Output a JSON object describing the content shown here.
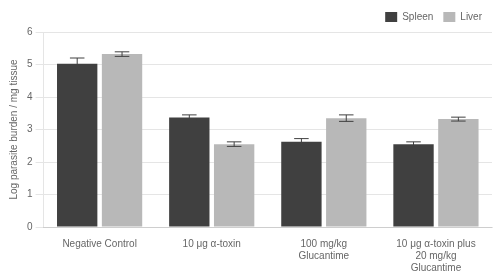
{
  "chart_data": {
    "type": "bar",
    "categories": [
      "Negative Control",
      "10 μg α-toxin",
      "100 mg/kg\nGlucantime",
      "10 μg α-toxin plus\n20 mg/kg\nGlucantime"
    ],
    "series": [
      {
        "name": "Spleen",
        "color": "#404040",
        "values": [
          5.02,
          3.37,
          2.62,
          2.55
        ],
        "errors": [
          0.18,
          0.08,
          0.1,
          0.07
        ]
      },
      {
        "name": "Liver",
        "color": "#b8b8b8",
        "values": [
          5.32,
          2.55,
          3.35,
          3.32
        ],
        "errors": [
          0.07,
          0.07,
          0.1,
          0.06
        ]
      }
    ],
    "ylabel": "Log parasite burden / mg tissue",
    "ylim": [
      0,
      6
    ],
    "yticks": [
      0,
      1,
      2,
      3,
      4,
      5,
      6
    ],
    "grid": true,
    "legend": "upper right"
  }
}
